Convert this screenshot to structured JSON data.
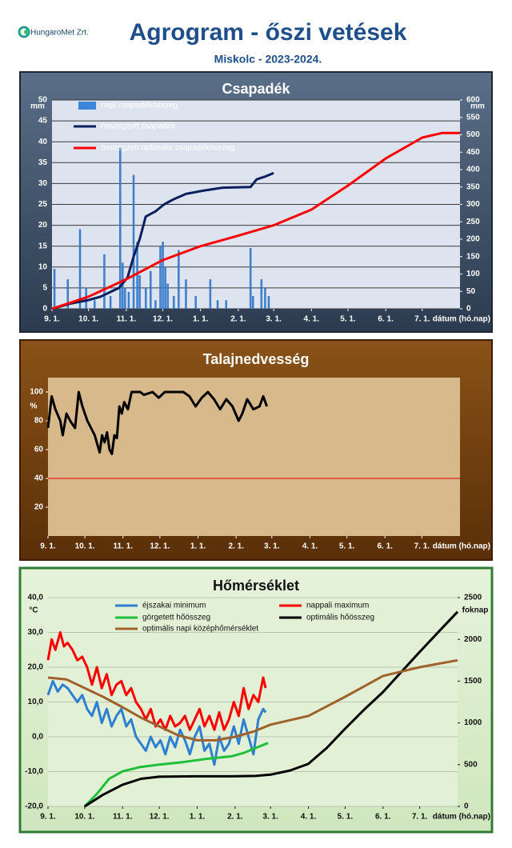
{
  "header": {
    "logo": "HungaroMet Zrt.",
    "title": "Agrogram - őszi vetések",
    "subtitle": "Miskolc - 2023-2024."
  },
  "chart_data": [
    {
      "type": "combo",
      "title": "Csapadék",
      "y_unit": "mm",
      "y2_unit": "mm",
      "x_label": "dátum (hó.nap)",
      "grid": true,
      "xlim": [
        0,
        335
      ],
      "xticks": [
        {
          "value": 0,
          "label": "9. 1."
        },
        {
          "value": 30,
          "label": "10. 1."
        },
        {
          "value": 61,
          "label": "11. 1."
        },
        {
          "value": 91,
          "label": "12. 1."
        },
        {
          "value": 122,
          "label": "1. 1."
        },
        {
          "value": 153,
          "label": "2. 1."
        },
        {
          "value": 182,
          "label": "3. 1."
        },
        {
          "value": 213,
          "label": "4. 1."
        },
        {
          "value": 243,
          "label": "5. 1."
        },
        {
          "value": 274,
          "label": "6. 1."
        },
        {
          "value": 304,
          "label": "7. 1."
        }
      ],
      "ylim": [
        0,
        50
      ],
      "yticks": [
        0,
        5,
        10,
        15,
        20,
        25,
        30,
        35,
        40,
        45,
        50
      ],
      "y2lim": [
        0,
        600
      ],
      "y2ticks": [
        0,
        50,
        100,
        150,
        200,
        250,
        300,
        350,
        400,
        450,
        500,
        550,
        600
      ],
      "series": [
        {
          "name": "napi csapadékösszeg",
          "kind": "bar",
          "color": "#3d85d8",
          "x": [
            2,
            13,
            23,
            28,
            35,
            43,
            48,
            56,
            58,
            60,
            63,
            67,
            70,
            72,
            77,
            81,
            85,
            89,
            91,
            93,
            95,
            100,
            104,
            110,
            118,
            130,
            136,
            143,
            163,
            165,
            172,
            175,
            178
          ],
          "values": [
            9.5,
            7,
            19,
            5,
            2,
            13,
            3,
            38.5,
            11,
            5,
            4,
            32,
            16,
            8,
            5,
            9,
            2,
            15,
            16,
            10,
            6,
            3,
            14,
            7,
            3,
            7,
            2,
            2,
            14.5,
            3,
            7,
            5,
            3
          ]
        },
        {
          "name": "összegzett csapadék",
          "kind": "line",
          "axis": "y2",
          "color": "#0b1f5c",
          "x": [
            0,
            15,
            30,
            40,
            55,
            62,
            67,
            72,
            77,
            85,
            92,
            100,
            110,
            125,
            140,
            163,
            168,
            175,
            182
          ],
          "values": [
            0,
            15,
            25,
            35,
            60,
            90,
            150,
            200,
            265,
            280,
            300,
            315,
            330,
            340,
            348,
            350,
            372,
            380,
            390
          ]
        },
        {
          "name": "összegzett optimális csapadékösszeg",
          "kind": "line",
          "axis": "y2",
          "color": "#ff0000",
          "x": [
            0,
            30,
            61,
            91,
            122,
            153,
            182,
            213,
            243,
            274,
            304,
            320,
            335
          ],
          "values": [
            0,
            35,
            85,
            140,
            180,
            210,
            240,
            285,
            354,
            432,
            492,
            505,
            505
          ]
        }
      ]
    },
    {
      "type": "line",
      "title": "Talajnedvesség",
      "y_unit": "%",
      "x_label": "dátum (hó.nap)",
      "grid": false,
      "xlim": [
        0,
        335
      ],
      "xticks": [
        {
          "value": 0,
          "label": "9. 1."
        },
        {
          "value": 30,
          "label": "10. 1."
        },
        {
          "value": 61,
          "label": "11. 1."
        },
        {
          "value": 91,
          "label": "12. 1."
        },
        {
          "value": 122,
          "label": "1. 1."
        },
        {
          "value": 153,
          "label": "2. 1."
        },
        {
          "value": 182,
          "label": "3. 1."
        },
        {
          "value": 213,
          "label": "4. 1."
        },
        {
          "value": 243,
          "label": "5. 1."
        },
        {
          "value": 274,
          "label": "6. 1."
        },
        {
          "value": 304,
          "label": "7. 1."
        }
      ],
      "ylim": [
        0,
        110
      ],
      "yticks": [
        20,
        40,
        60,
        80,
        100
      ],
      "hline": {
        "value": 40,
        "color": "#e00000"
      },
      "series": [
        {
          "kind": "line",
          "color": "#000000",
          "x": [
            0,
            3,
            6,
            10,
            12,
            15,
            18,
            22,
            25,
            28,
            32,
            35,
            38,
            42,
            44,
            46,
            48,
            50,
            52,
            54,
            56,
            58,
            60,
            62,
            65,
            68,
            75,
            78,
            85,
            90,
            95,
            110,
            115,
            120,
            125,
            130,
            135,
            140,
            145,
            150,
            155,
            158,
            162,
            167,
            172,
            175,
            178
          ],
          "values": [
            75,
            97,
            88,
            80,
            70,
            85,
            80,
            75,
            100,
            90,
            80,
            75,
            70,
            58,
            70,
            65,
            72,
            60,
            57,
            70,
            68,
            90,
            85,
            93,
            88,
            100,
            100,
            98,
            100,
            96,
            100,
            100,
            97,
            90,
            96,
            100,
            95,
            88,
            95,
            90,
            80,
            85,
            95,
            88,
            90,
            97,
            90
          ]
        }
      ]
    },
    {
      "type": "line",
      "title": "Hőmérséklet",
      "y_unit": "°C",
      "y2_unit": "foknap",
      "x_label": "dátum (hó.nap)",
      "grid": true,
      "xlim": [
        0,
        335
      ],
      "xticks": [
        {
          "value": 0,
          "label": "9. 1."
        },
        {
          "value": 30,
          "label": "10. 1."
        },
        {
          "value": 61,
          "label": "11. 1."
        },
        {
          "value": 91,
          "label": "12. 1."
        },
        {
          "value": 122,
          "label": "1. 1."
        },
        {
          "value": 153,
          "label": "2. 1."
        },
        {
          "value": 182,
          "label": "3. 1."
        },
        {
          "value": 213,
          "label": "4. 1."
        },
        {
          "value": 243,
          "label": "5. 1."
        },
        {
          "value": 274,
          "label": "6. 1."
        },
        {
          "value": 304,
          "label": "7. 1."
        }
      ],
      "ylim": [
        -20,
        40
      ],
      "yticks": [
        {
          "value": -20,
          "label": "-20,0"
        },
        {
          "value": -10,
          "label": "-10,0"
        },
        {
          "value": 0,
          "label": "0,0"
        },
        {
          "value": 10,
          "label": "10,0"
        },
        {
          "value": 20,
          "label": "20,0"
        },
        {
          "value": 30,
          "label": "30,0"
        },
        {
          "value": 40,
          "label": "40,0"
        }
      ],
      "y2lim": [
        0,
        2500
      ],
      "y2ticks": [
        0,
        500,
        1000,
        1500,
        2000,
        2500
      ],
      "series": [
        {
          "name": "éjszakai minimum",
          "kind": "line",
          "color": "#2e7fd0",
          "x": [
            0,
            4,
            8,
            12,
            16,
            20,
            24,
            28,
            32,
            36,
            40,
            44,
            48,
            52,
            56,
            60,
            64,
            68,
            72,
            76,
            80,
            84,
            88,
            92,
            96,
            100,
            104,
            108,
            112,
            116,
            120,
            124,
            128,
            132,
            136,
            140,
            144,
            148,
            152,
            156,
            160,
            164,
            168,
            172,
            176,
            178
          ],
          "values": [
            12,
            16,
            13,
            15,
            14,
            12,
            10,
            12,
            8,
            6,
            10,
            4,
            8,
            3,
            6,
            8,
            3,
            5,
            0,
            -2,
            -4,
            0,
            -3,
            -1,
            -5,
            0,
            -3,
            2,
            -1,
            -5,
            0,
            3,
            -4,
            -2,
            -8,
            0,
            -4,
            -2,
            3,
            -2,
            5,
            0,
            -5,
            5,
            8,
            7
          ]
        },
        {
          "name": "nappali maximum",
          "kind": "line",
          "color": "#ff0000",
          "x": [
            0,
            3,
            6,
            10,
            13,
            16,
            20,
            24,
            28,
            32,
            36,
            40,
            44,
            48,
            52,
            56,
            60,
            64,
            68,
            72,
            76,
            80,
            84,
            88,
            92,
            96,
            100,
            104,
            108,
            112,
            116,
            120,
            124,
            128,
            132,
            136,
            140,
            144,
            148,
            152,
            156,
            160,
            164,
            168,
            172,
            176,
            178
          ],
          "values": [
            22,
            28,
            25,
            30,
            26,
            27,
            25,
            22,
            23,
            20,
            15,
            20,
            14,
            18,
            12,
            15,
            16,
            12,
            14,
            10,
            8,
            5,
            8,
            3,
            5,
            2,
            6,
            3,
            4,
            6,
            2,
            5,
            8,
            3,
            6,
            2,
            7,
            2,
            5,
            10,
            6,
            14,
            8,
            12,
            10,
            17,
            14
          ]
        },
        {
          "name": "görgetett hőösszeg",
          "kind": "line",
          "axis": "y2",
          "color": "#1fbf3a",
          "x": [
            30,
            40,
            50,
            61,
            75,
            91,
            110,
            130,
            150,
            160,
            170,
            180
          ],
          "values": [
            0,
            150,
            330,
            420,
            470,
            500,
            530,
            570,
            600,
            640,
            700,
            760
          ]
        },
        {
          "name": "optimális hőösszeg",
          "kind": "line",
          "axis": "y2",
          "color": "#000000",
          "x": [
            30,
            45,
            61,
            76,
            91,
            120,
            150,
            170,
            182,
            198,
            213,
            228,
            243,
            258,
            274,
            289,
            304,
            320,
            335
          ],
          "values": [
            0,
            140,
            260,
            330,
            355,
            360,
            360,
            365,
            380,
            430,
            510,
            700,
            930,
            1150,
            1370,
            1610,
            1850,
            2100,
            2330
          ]
        },
        {
          "name": "optimális napi középhőmérséklet",
          "kind": "line",
          "color": "#a0622d",
          "x": [
            0,
            15,
            30,
            45,
            61,
            76,
            91,
            106,
            122,
            137,
            153,
            168,
            182,
            213,
            243,
            274,
            304,
            335
          ],
          "values": [
            17,
            16.5,
            14,
            11.5,
            8.5,
            5.5,
            3,
            0.5,
            -1,
            -1,
            0,
            1.5,
            3.5,
            6,
            11.5,
            17.5,
            20,
            22
          ]
        }
      ]
    }
  ]
}
